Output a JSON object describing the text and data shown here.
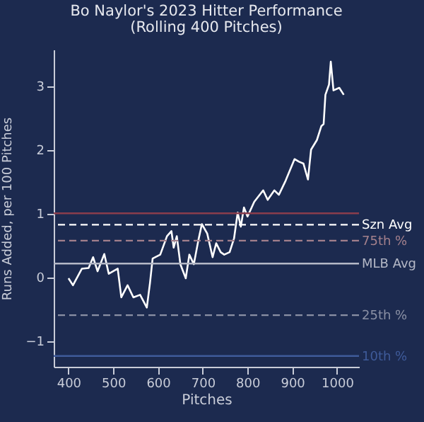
{
  "chart_data": {
    "type": "line",
    "title": "Bo Naylor's 2023 Hitter Performance",
    "subtitle": "(Rolling 400 Pitches)",
    "xlabel": "Pitches",
    "ylabel": "Runs Added, per 100 Pitches",
    "xlim": [
      367,
      1049
    ],
    "ylim": [
      -1.41,
      3.57
    ],
    "xticks": [
      400,
      500,
      600,
      700,
      800,
      900,
      1000
    ],
    "yticks": [
      -1,
      0,
      1,
      2,
      3
    ],
    "grid": false,
    "line_style": "solid",
    "marker": "none",
    "series": [
      {
        "color": "#ffffff",
        "x": [
          400,
          410,
          430,
          445,
          455,
          465,
          480,
          490,
          510,
          518,
          532,
          545,
          560,
          575,
          582,
          588,
          605,
          620,
          630,
          635,
          642,
          650,
          662,
          670,
          680,
          690,
          698,
          710,
          722,
          730,
          740,
          748,
          760,
          770,
          778,
          785,
          792,
          800,
          815,
          835,
          845,
          860,
          870,
          885,
          905,
          915,
          925,
          935,
          942,
          955,
          965,
          970,
          974,
          982,
          986,
          992,
          1005,
          1015
        ],
        "values": [
          -0.02,
          -0.13,
          0.13,
          0.14,
          0.31,
          0.09,
          0.36,
          0.05,
          0.13,
          -0.32,
          -0.13,
          -0.32,
          -0.28,
          -0.48,
          -0.1,
          0.29,
          0.35,
          0.64,
          0.72,
          0.46,
          0.64,
          0.2,
          -0.02,
          0.35,
          0.2,
          0.57,
          0.83,
          0.68,
          0.31,
          0.53,
          0.39,
          0.35,
          0.39,
          0.61,
          1.01,
          0.79,
          1.09,
          0.95,
          1.18,
          1.36,
          1.21,
          1.36,
          1.29,
          1.51,
          1.85,
          1.81,
          1.78,
          1.53,
          2.0,
          2.15,
          2.37,
          2.4,
          2.86,
          3.02,
          3.38,
          2.93,
          2.97,
          2.86
        ]
      }
    ],
    "ref_lines": [
      {
        "axis": "y",
        "value": 1.0,
        "label": null,
        "color": "#8a3d4c",
        "line_style": "solid"
      },
      {
        "axis": "y",
        "value": 0.82,
        "label": "Szn Avg",
        "color": "#ffffff",
        "line_style": "dashed"
      },
      {
        "axis": "y",
        "value": 0.57,
        "label": "75th %",
        "color": "#a3808c",
        "line_style": "dashed"
      },
      {
        "axis": "y",
        "value": 0.21,
        "label": "MLB Avg",
        "color": "#b4b8c6",
        "line_style": "solid"
      },
      {
        "axis": "y",
        "value": -0.6,
        "label": "25th %",
        "color": "#8a90a4",
        "line_style": "dashed"
      },
      {
        "axis": "y",
        "value": -1.24,
        "label": "10th %",
        "color": "#3f5b9a",
        "line_style": "solid"
      }
    ]
  }
}
